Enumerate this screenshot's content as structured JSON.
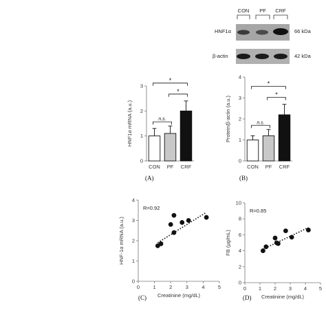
{
  "blot": {
    "lanes": [
      "CON",
      "PF",
      "CRF"
    ],
    "rows": [
      {
        "protein": "HNF1α",
        "size": "66 kDa"
      },
      {
        "protein": "β-actin",
        "size": "42 kDa"
      }
    ]
  },
  "chart_data": [
    {
      "panel": "(A)",
      "type": "bar",
      "categories": [
        "CON",
        "PF",
        "CRF"
      ],
      "values": [
        1.0,
        1.1,
        2.0
      ],
      "errors": [
        0.3,
        0.3,
        0.4
      ],
      "bar_colors": [
        "#ffffff",
        "#c8c8c8",
        "#111111"
      ],
      "ylabel": "HNF1α mRNA (a.u.)",
      "ylim": [
        0,
        3
      ],
      "yticks": [
        "0",
        "1",
        "2",
        "3"
      ],
      "comparisons": [
        {
          "from": "CON",
          "to": "PF",
          "label": "n.s."
        },
        {
          "from": "PF",
          "to": "CRF",
          "label": "*"
        },
        {
          "from": "CON",
          "to": "CRF",
          "label": "*"
        }
      ]
    },
    {
      "panel": "(B)",
      "type": "bar",
      "categories": [
        "CON",
        "PF",
        "CRF"
      ],
      "values": [
        1.0,
        1.2,
        2.2
      ],
      "errors": [
        0.2,
        0.3,
        0.5
      ],
      "bar_colors": [
        "#ffffff",
        "#c8c8c8",
        "#111111"
      ],
      "ylabel": "Protein/β-actin (a.u.)",
      "ylim": [
        0,
        4
      ],
      "yticks": [
        "0",
        "1",
        "2",
        "3",
        "4"
      ],
      "comparisons": [
        {
          "from": "CON",
          "to": "PF",
          "label": "n.s."
        },
        {
          "from": "PF",
          "to": "CRF",
          "label": "*"
        },
        {
          "from": "CON",
          "to": "CRF",
          "label": "*"
        }
      ]
    },
    {
      "panel": "(C)",
      "type": "scatter",
      "annotation": "R=0.92",
      "xlabel": "Creatinine (mg/dL)",
      "ylabel": "HNF-1α mRNA (a.u.)",
      "xlim": [
        0,
        5
      ],
      "ylim": [
        0,
        4
      ],
      "xticks": [
        "0",
        "1",
        "2",
        "3",
        "4",
        "5"
      ],
      "yticks": [
        "0",
        "1",
        "2",
        "3",
        "4"
      ],
      "points": [
        [
          1.2,
          1.75
        ],
        [
          1.4,
          1.85
        ],
        [
          2.0,
          2.8
        ],
        [
          2.2,
          2.4
        ],
        [
          2.2,
          3.25
        ],
        [
          2.7,
          2.9
        ],
        [
          3.1,
          3.0
        ],
        [
          4.2,
          3.15
        ]
      ],
      "trendline": [
        [
          1.2,
          1.9
        ],
        [
          4.2,
          3.4
        ]
      ]
    },
    {
      "panel": "(D)",
      "type": "scatter",
      "annotation": "R=0.85",
      "xlabel": "Creatinine (mg/dL)",
      "ylabel": "FB (µg/mL)",
      "xlim": [
        0,
        5
      ],
      "ylim": [
        0,
        10
      ],
      "xticks": [
        "0",
        "1",
        "2",
        "3",
        "4",
        "5"
      ],
      "yticks": [
        "0",
        "2",
        "4",
        "6",
        "8",
        "10"
      ],
      "points": [
        [
          1.2,
          4.0
        ],
        [
          1.4,
          4.5
        ],
        [
          2.0,
          5.6
        ],
        [
          2.1,
          5.0
        ],
        [
          2.2,
          4.9
        ],
        [
          2.7,
          6.5
        ],
        [
          3.1,
          5.7
        ],
        [
          4.2,
          6.6
        ]
      ],
      "trendline": [
        [
          1.2,
          4.2
        ],
        [
          4.2,
          6.9
        ]
      ]
    }
  ]
}
